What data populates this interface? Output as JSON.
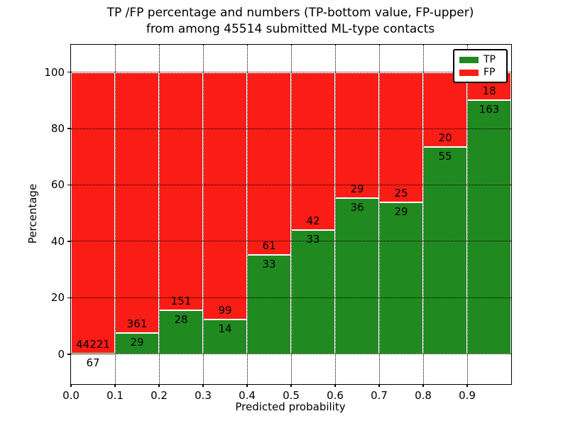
{
  "title": {
    "line1": "TP /FP percentage and numbers (TP-bottom value, FP-upper)",
    "line2": "from among 45514 submitted ML-type contacts"
  },
  "chart_data": {
    "type": "bar",
    "stacked": true,
    "title": "TP /FP percentage and numbers (TP-bottom value, FP-upper) from among 45514 submitted ML-type contacts",
    "xlabel": "Predicted probability",
    "ylabel": "Percentage",
    "x_tick_labels": [
      "0.0",
      "0.1",
      "0.2",
      "0.3",
      "0.4",
      "0.5",
      "0.6",
      "0.7",
      "0.8",
      "0.9"
    ],
    "x_tick_values": [
      0.0,
      0.1,
      0.2,
      0.3,
      0.4,
      0.5,
      0.6,
      0.7,
      0.8,
      0.9
    ],
    "y_tick_labels": [
      "0",
      "20",
      "40",
      "60",
      "80",
      "100"
    ],
    "y_tick_values": [
      0,
      20,
      40,
      60,
      80,
      100
    ],
    "xlim": [
      0.0,
      1.0
    ],
    "ylim": [
      -10.6,
      109.7
    ],
    "bin_width": 0.1,
    "bin_starts": [
      0.0,
      0.1,
      0.2,
      0.3,
      0.4,
      0.5,
      0.6,
      0.7,
      0.8,
      0.9
    ],
    "series": [
      {
        "name": "TP",
        "color": "#208a20",
        "counts": [
          67,
          29,
          28,
          14,
          33,
          33,
          36,
          29,
          55,
          163
        ]
      },
      {
        "name": "FP",
        "color": "#fa1d15",
        "counts": [
          44221,
          361,
          151,
          99,
          61,
          42,
          29,
          25,
          20,
          18
        ]
      }
    ],
    "tp_percent_heights": [
      0.15,
      7.44,
      15.64,
      12.39,
      35.11,
      44.0,
      55.38,
      53.7,
      73.33,
      90.06
    ],
    "fp_percent_heights": [
      99.85,
      92.56,
      84.36,
      87.61,
      64.89,
      56.0,
      44.62,
      46.3,
      26.67,
      9.94
    ],
    "grid": {
      "style": "dotted",
      "color": "#000000",
      "horizontal": true,
      "vertical": true
    },
    "legend": {
      "position": "upper right",
      "entries": [
        "TP",
        "FP"
      ]
    }
  },
  "colors": {
    "tp": "#208a20",
    "fp": "#fa1d15",
    "background": "#ffffff",
    "text": "#000000"
  }
}
